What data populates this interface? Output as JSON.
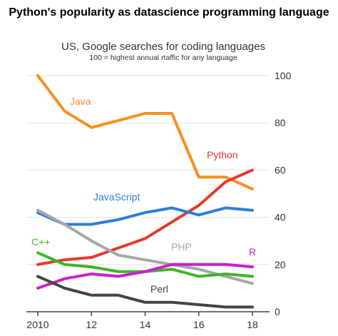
{
  "page": {
    "heading": "Python's popularity as datascience programming language"
  },
  "chart_data": {
    "type": "line",
    "title": "US, Google searches for coding languages",
    "subtitle": "100 = highest annual rtaffic for any language",
    "xlabel": "",
    "ylabel": "",
    "x": [
      2010,
      2011,
      2012,
      2013,
      2014,
      2015,
      2016,
      2017,
      2018
    ],
    "x_tick_values": [
      2010,
      2012,
      2014,
      2016,
      2018
    ],
    "x_tick_labels": [
      "2010",
      "12",
      "14",
      "16",
      "18"
    ],
    "xlim": [
      2010,
      2018
    ],
    "ylim": [
      0,
      100
    ],
    "y_ticks": [
      0,
      20,
      40,
      60,
      80,
      100
    ],
    "y_axis_side": "right",
    "grid": true,
    "legend": "inline labels",
    "series": [
      {
        "name": "Java",
        "color": "#f7901e",
        "values": [
          100,
          85,
          78,
          81,
          84,
          84,
          57,
          57,
          52
        ]
      },
      {
        "name": "Python",
        "color": "#e8392b",
        "values": [
          20,
          22,
          23,
          27,
          31,
          38,
          45,
          55,
          60
        ]
      },
      {
        "name": "JavaScript",
        "color": "#2f7ed8",
        "values": [
          42,
          37,
          37,
          39,
          42,
          44,
          41,
          44,
          43
        ]
      },
      {
        "name": "PHP",
        "color": "#a7a7a7",
        "values": [
          43,
          37,
          30,
          24,
          22,
          20,
          18,
          15,
          12
        ]
      },
      {
        "name": "C++",
        "color": "#3fb52a",
        "values": [
          25,
          20,
          19,
          17,
          17,
          18,
          15,
          16,
          15
        ]
      },
      {
        "name": "R",
        "color": "#cc1fcc",
        "values": [
          10,
          14,
          16,
          15,
          17,
          20,
          20,
          20,
          19
        ]
      },
      {
        "name": "Perl",
        "color": "#444444",
        "values": [
          15,
          10,
          7,
          7,
          4,
          4,
          3,
          2,
          2
        ]
      }
    ]
  }
}
